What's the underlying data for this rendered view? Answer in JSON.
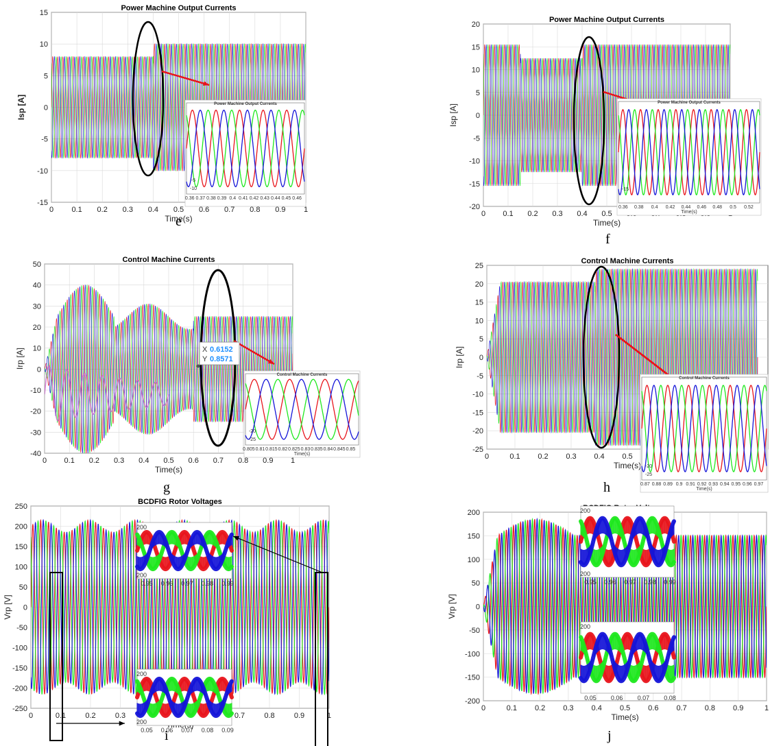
{
  "colors": {
    "red": "#e8141b",
    "green": "#1ee81e",
    "blue": "#1414d8",
    "magenta": "#cc66cc",
    "annotation": "#e8141b",
    "ellipse": "#000000",
    "tooltip": "#1e90ff"
  },
  "chart_data": [
    {
      "id": "e",
      "caption": "e",
      "type": "line",
      "title": "Power Machine Output Currents",
      "xlabel": "Time(s)",
      "ylabel": "Isp [A]",
      "xlim": [
        0,
        1
      ],
      "ylim": [
        -15,
        15
      ],
      "xticks": [
        "0",
        "0.1",
        "0.2",
        "0.3",
        "0.4",
        "0.5",
        "0.6",
        "0.7",
        "0.8",
        "0.9",
        "1"
      ],
      "yticks": [
        "15",
        "10",
        "5",
        "0",
        "-5",
        "-10",
        "-15"
      ],
      "grid": true,
      "series": [
        {
          "phase": "a",
          "color": "red"
        },
        {
          "phase": "b",
          "color": "green"
        },
        {
          "phase": "c",
          "color": "blue"
        }
      ],
      "amplitude_segments": [
        {
          "from": 0,
          "to": 0.4,
          "amplitude": 8
        },
        {
          "from": 0.4,
          "to": 1,
          "amplitude": 10
        }
      ],
      "inset": {
        "title": "Power Machine Output Currents",
        "xticks": [
          "0.36",
          "0.37",
          "0.38",
          "0.39",
          "0.4",
          "0.41",
          "0.42",
          "0.43",
          "0.44",
          "0.45",
          "0.46"
        ],
        "yticks": [
          "-5",
          "-10"
        ]
      }
    },
    {
      "id": "f",
      "caption": "f",
      "type": "line",
      "title": "Power Machine Output Currents",
      "xlabel": "Time(s)",
      "ylabel": "Isp [A]",
      "xlim": [
        0,
        1
      ],
      "ylim": [
        -20,
        20
      ],
      "xticks": [
        "0",
        "0.1",
        "0.2",
        "0.3",
        "0.4",
        "0.5",
        "0.6",
        "0.7",
        "0.8",
        "0.9",
        "1"
      ],
      "yticks": [
        "20",
        "15",
        "10",
        "5",
        "0",
        "-5",
        "-10",
        "-15",
        "-20"
      ],
      "grid": true,
      "series": [
        {
          "phase": "a",
          "color": "red"
        },
        {
          "phase": "b",
          "color": "green"
        },
        {
          "phase": "c",
          "color": "blue"
        }
      ],
      "amplitude_segments": [
        {
          "from": 0,
          "to": 0.15,
          "amplitude": 15.5
        },
        {
          "from": 0.15,
          "to": 0.4,
          "amplitude": 12.5
        },
        {
          "from": 0.4,
          "to": 1,
          "amplitude": 15.5
        }
      ],
      "inset": {
        "title": "Power Machine Output Currents",
        "xticks": [
          "0.36",
          "0.38",
          "0.4",
          "0.42",
          "0.44",
          "0.46",
          "0.48",
          "0.5",
          "0.52"
        ],
        "yticks": [
          "-15"
        ],
        "xlabel": "Time(s)"
      }
    },
    {
      "id": "g",
      "caption": "g",
      "type": "line",
      "title": "Control Machine Currents",
      "xlabel": "Time(s)",
      "ylabel": "Irp [A]",
      "xlim": [
        0,
        1
      ],
      "ylim": [
        -40,
        50
      ],
      "xticks": [
        "0",
        "0.1",
        "0.2",
        "0.3",
        "0.4",
        "0.5",
        "0.6",
        "0.7",
        "0.8",
        "0.9",
        "1"
      ],
      "yticks": [
        "50",
        "40",
        "30",
        "20",
        "10",
        "0",
        "-10",
        "-20",
        "-30",
        "-40"
      ],
      "grid": true,
      "series": [
        {
          "phase": "a",
          "color": "red"
        },
        {
          "phase": "b",
          "color": "green"
        },
        {
          "phase": "c",
          "color": "blue"
        },
        {
          "phase": "extra",
          "color": "magenta"
        }
      ],
      "datatip": {
        "x_label": "X",
        "x_value": "0.6152",
        "y_label": "Y",
        "y_value": "0.8571"
      },
      "inset": {
        "title": "Control Machine Currents",
        "xticks": [
          "0.805",
          "0.81",
          "0.815",
          "0.82",
          "0.825",
          "0.83",
          "0.835",
          "0.84",
          "0.845",
          "0.85"
        ],
        "yticks": [
          "-20",
          "-25"
        ],
        "xlabel": "Time(s)"
      }
    },
    {
      "id": "h",
      "caption": "h",
      "type": "line",
      "title": "Control Machine Currents",
      "xlabel": "Time(s)",
      "ylabel": "Irp [A]",
      "xlim": [
        0,
        1
      ],
      "ylim": [
        -25,
        25
      ],
      "xticks": [
        "0",
        "0.1",
        "0.2",
        "0.3",
        "0.4",
        "0.5"
      ],
      "yticks": [
        "25",
        "20",
        "15",
        "10",
        "5",
        "0",
        "-5",
        "-10",
        "-15",
        "-20",
        "-25"
      ],
      "grid": true,
      "series": [
        {
          "phase": "a",
          "color": "red"
        },
        {
          "phase": "b",
          "color": "green"
        },
        {
          "phase": "c",
          "color": "blue"
        }
      ],
      "amplitude_segments": [
        {
          "from": 0,
          "to": 0.4,
          "amplitude": 20.5
        },
        {
          "from": 0.4,
          "to": 1,
          "amplitude": 24
        }
      ],
      "inset": {
        "title": "Control Machine Currents",
        "xticks": [
          "0.87",
          "0.88",
          "0.89",
          "0.9",
          "0.91",
          "0.92",
          "0.93",
          "0.94",
          "0.95",
          "0.96",
          "0.97"
        ],
        "yticks": [
          "-20",
          "-25"
        ],
        "xlabel": "Time(s)"
      }
    },
    {
      "id": "i",
      "caption": "i",
      "type": "line",
      "title": "BCDFIG Rotor Voltages",
      "xlabel": "Time(s)",
      "ylabel": "Vrp [V]",
      "xlim": [
        0,
        1
      ],
      "ylim": [
        -250,
        250
      ],
      "xticks": [
        "0",
        "0.1",
        "0.2",
        "0.3",
        "0.4",
        "0.5",
        "0.6",
        "0.7",
        "0.8",
        "0.9",
        "1"
      ],
      "yticks": [
        "250",
        "200",
        "150",
        "100",
        "50",
        "0",
        "-50",
        "-100",
        "-150",
        "-200",
        "-250"
      ],
      "grid": true,
      "series": [
        {
          "phase": "a",
          "color": "red"
        },
        {
          "phase": "b",
          "color": "green"
        },
        {
          "phase": "c",
          "color": "blue"
        }
      ],
      "inset_top": {
        "ytick_top": "200",
        "ytick_bottom": "200",
        "xticks": [
          "0.95",
          "0.96",
          "0.97",
          "0.98",
          "0.99"
        ]
      },
      "inset_bottom": {
        "ytick_top": "200",
        "ytick_bottom": "200",
        "xticks": [
          "0.05",
          "0.06",
          "0.07",
          "0.08",
          "0.09"
        ]
      }
    },
    {
      "id": "j",
      "caption": "j",
      "type": "line",
      "title": "BCDFIG Rotor Voltages",
      "xlabel": "Time(s)",
      "ylabel": "Vrp [V]",
      "xlim": [
        0,
        1
      ],
      "ylim": [
        -200,
        200
      ],
      "xticks": [
        "0",
        "0.1",
        "0.2",
        "0.3",
        "0.4",
        "0.5",
        "0.6",
        "0.7",
        "0.8",
        "0.9",
        "1"
      ],
      "yticks": [
        "200",
        "150",
        "100",
        "50",
        "0",
        "-50",
        "-100",
        "-150",
        "-200"
      ],
      "grid": true,
      "series": [
        {
          "phase": "a",
          "color": "red"
        },
        {
          "phase": "b",
          "color": "green"
        },
        {
          "phase": "c",
          "color": "blue"
        }
      ],
      "inset_top": {
        "ytick_top": "200",
        "ytick_bottom": "200",
        "xticks": [
          "0.95",
          "0.96",
          "0.97",
          "0.98",
          "0.99"
        ]
      },
      "inset_bottom": {
        "ytick_top": "200",
        "ytick_bottom": "",
        "xticks": [
          "0.05",
          "0.06",
          "0.07",
          "0.08"
        ]
      }
    }
  ]
}
